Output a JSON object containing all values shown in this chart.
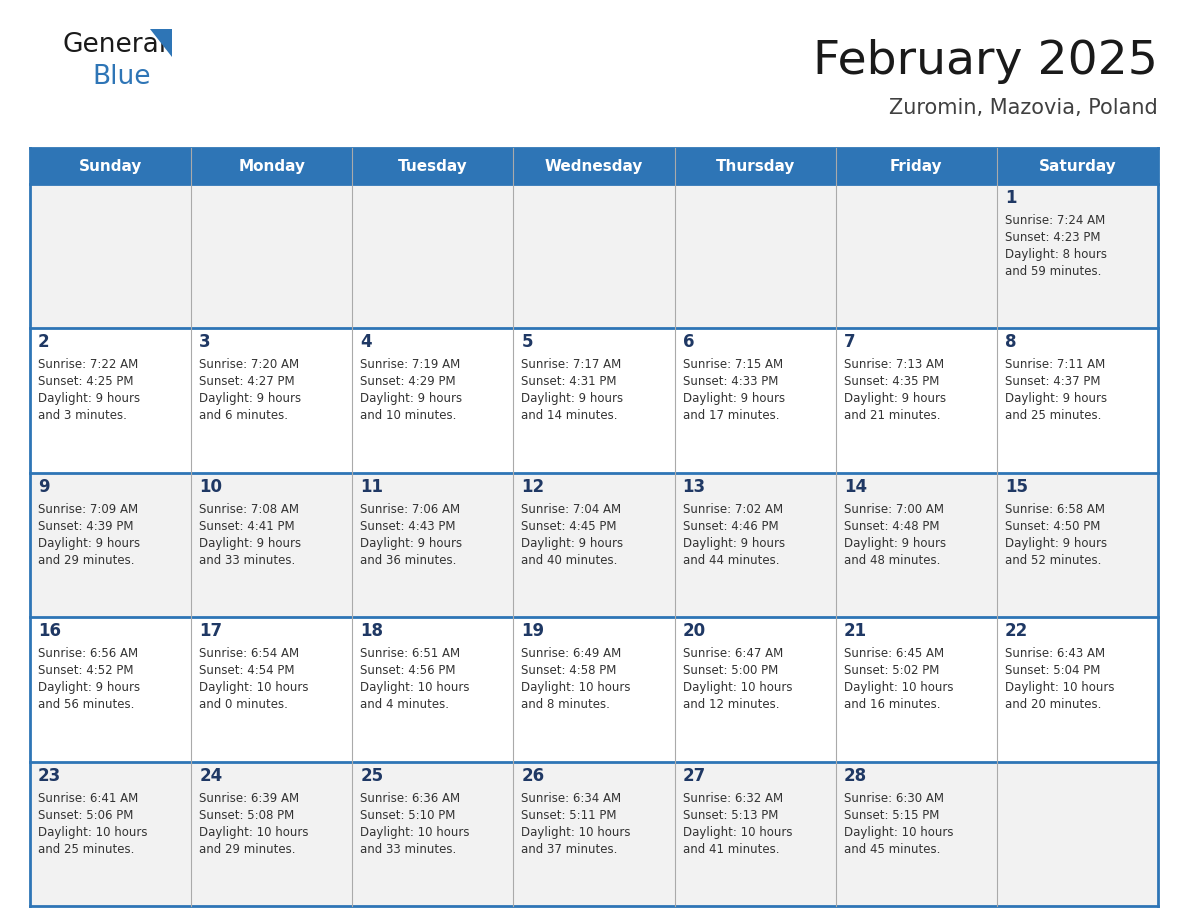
{
  "title": "February 2025",
  "subtitle": "Zuromin, Mazovia, Poland",
  "header_bg": "#2E75B6",
  "header_text": "#FFFFFF",
  "cell_bg_light": "#F2F2F2",
  "cell_bg_white": "#FFFFFF",
  "cell_text": "#333333",
  "day_number_color": "#1F3864",
  "grid_line_color": "#2E75B6",
  "days_of_week": [
    "Sunday",
    "Monday",
    "Tuesday",
    "Wednesday",
    "Thursday",
    "Friday",
    "Saturday"
  ],
  "weeks": [
    [
      {
        "day": null,
        "sunrise": null,
        "sunset": null,
        "daylight_line1": null,
        "daylight_line2": null
      },
      {
        "day": null,
        "sunrise": null,
        "sunset": null,
        "daylight_line1": null,
        "daylight_line2": null
      },
      {
        "day": null,
        "sunrise": null,
        "sunset": null,
        "daylight_line1": null,
        "daylight_line2": null
      },
      {
        "day": null,
        "sunrise": null,
        "sunset": null,
        "daylight_line1": null,
        "daylight_line2": null
      },
      {
        "day": null,
        "sunrise": null,
        "sunset": null,
        "daylight_line1": null,
        "daylight_line2": null
      },
      {
        "day": null,
        "sunrise": null,
        "sunset": null,
        "daylight_line1": null,
        "daylight_line2": null
      },
      {
        "day": 1,
        "sunrise": "7:24 AM",
        "sunset": "4:23 PM",
        "daylight_line1": "Daylight: 8 hours",
        "daylight_line2": "and 59 minutes."
      }
    ],
    [
      {
        "day": 2,
        "sunrise": "7:22 AM",
        "sunset": "4:25 PM",
        "daylight_line1": "Daylight: 9 hours",
        "daylight_line2": "and 3 minutes."
      },
      {
        "day": 3,
        "sunrise": "7:20 AM",
        "sunset": "4:27 PM",
        "daylight_line1": "Daylight: 9 hours",
        "daylight_line2": "and 6 minutes."
      },
      {
        "day": 4,
        "sunrise": "7:19 AM",
        "sunset": "4:29 PM",
        "daylight_line1": "Daylight: 9 hours",
        "daylight_line2": "and 10 minutes."
      },
      {
        "day": 5,
        "sunrise": "7:17 AM",
        "sunset": "4:31 PM",
        "daylight_line1": "Daylight: 9 hours",
        "daylight_line2": "and 14 minutes."
      },
      {
        "day": 6,
        "sunrise": "7:15 AM",
        "sunset": "4:33 PM",
        "daylight_line1": "Daylight: 9 hours",
        "daylight_line2": "and 17 minutes."
      },
      {
        "day": 7,
        "sunrise": "7:13 AM",
        "sunset": "4:35 PM",
        "daylight_line1": "Daylight: 9 hours",
        "daylight_line2": "and 21 minutes."
      },
      {
        "day": 8,
        "sunrise": "7:11 AM",
        "sunset": "4:37 PM",
        "daylight_line1": "Daylight: 9 hours",
        "daylight_line2": "and 25 minutes."
      }
    ],
    [
      {
        "day": 9,
        "sunrise": "7:09 AM",
        "sunset": "4:39 PM",
        "daylight_line1": "Daylight: 9 hours",
        "daylight_line2": "and 29 minutes."
      },
      {
        "day": 10,
        "sunrise": "7:08 AM",
        "sunset": "4:41 PM",
        "daylight_line1": "Daylight: 9 hours",
        "daylight_line2": "and 33 minutes."
      },
      {
        "day": 11,
        "sunrise": "7:06 AM",
        "sunset": "4:43 PM",
        "daylight_line1": "Daylight: 9 hours",
        "daylight_line2": "and 36 minutes."
      },
      {
        "day": 12,
        "sunrise": "7:04 AM",
        "sunset": "4:45 PM",
        "daylight_line1": "Daylight: 9 hours",
        "daylight_line2": "and 40 minutes."
      },
      {
        "day": 13,
        "sunrise": "7:02 AM",
        "sunset": "4:46 PM",
        "daylight_line1": "Daylight: 9 hours",
        "daylight_line2": "and 44 minutes."
      },
      {
        "day": 14,
        "sunrise": "7:00 AM",
        "sunset": "4:48 PM",
        "daylight_line1": "Daylight: 9 hours",
        "daylight_line2": "and 48 minutes."
      },
      {
        "day": 15,
        "sunrise": "6:58 AM",
        "sunset": "4:50 PM",
        "daylight_line1": "Daylight: 9 hours",
        "daylight_line2": "and 52 minutes."
      }
    ],
    [
      {
        "day": 16,
        "sunrise": "6:56 AM",
        "sunset": "4:52 PM",
        "daylight_line1": "Daylight: 9 hours",
        "daylight_line2": "and 56 minutes."
      },
      {
        "day": 17,
        "sunrise": "6:54 AM",
        "sunset": "4:54 PM",
        "daylight_line1": "Daylight: 10 hours",
        "daylight_line2": "and 0 minutes."
      },
      {
        "day": 18,
        "sunrise": "6:51 AM",
        "sunset": "4:56 PM",
        "daylight_line1": "Daylight: 10 hours",
        "daylight_line2": "and 4 minutes."
      },
      {
        "day": 19,
        "sunrise": "6:49 AM",
        "sunset": "4:58 PM",
        "daylight_line1": "Daylight: 10 hours",
        "daylight_line2": "and 8 minutes."
      },
      {
        "day": 20,
        "sunrise": "6:47 AM",
        "sunset": "5:00 PM",
        "daylight_line1": "Daylight: 10 hours",
        "daylight_line2": "and 12 minutes."
      },
      {
        "day": 21,
        "sunrise": "6:45 AM",
        "sunset": "5:02 PM",
        "daylight_line1": "Daylight: 10 hours",
        "daylight_line2": "and 16 minutes."
      },
      {
        "day": 22,
        "sunrise": "6:43 AM",
        "sunset": "5:04 PM",
        "daylight_line1": "Daylight: 10 hours",
        "daylight_line2": "and 20 minutes."
      }
    ],
    [
      {
        "day": 23,
        "sunrise": "6:41 AM",
        "sunset": "5:06 PM",
        "daylight_line1": "Daylight: 10 hours",
        "daylight_line2": "and 25 minutes."
      },
      {
        "day": 24,
        "sunrise": "6:39 AM",
        "sunset": "5:08 PM",
        "daylight_line1": "Daylight: 10 hours",
        "daylight_line2": "and 29 minutes."
      },
      {
        "day": 25,
        "sunrise": "6:36 AM",
        "sunset": "5:10 PM",
        "daylight_line1": "Daylight: 10 hours",
        "daylight_line2": "and 33 minutes."
      },
      {
        "day": 26,
        "sunrise": "6:34 AM",
        "sunset": "5:11 PM",
        "daylight_line1": "Daylight: 10 hours",
        "daylight_line2": "and 37 minutes."
      },
      {
        "day": 27,
        "sunrise": "6:32 AM",
        "sunset": "5:13 PM",
        "daylight_line1": "Daylight: 10 hours",
        "daylight_line2": "and 41 minutes."
      },
      {
        "day": 28,
        "sunrise": "6:30 AM",
        "sunset": "5:15 PM",
        "daylight_line1": "Daylight: 10 hours",
        "daylight_line2": "and 45 minutes."
      },
      {
        "day": null,
        "sunrise": null,
        "sunset": null,
        "daylight_line1": null,
        "daylight_line2": null
      }
    ]
  ]
}
